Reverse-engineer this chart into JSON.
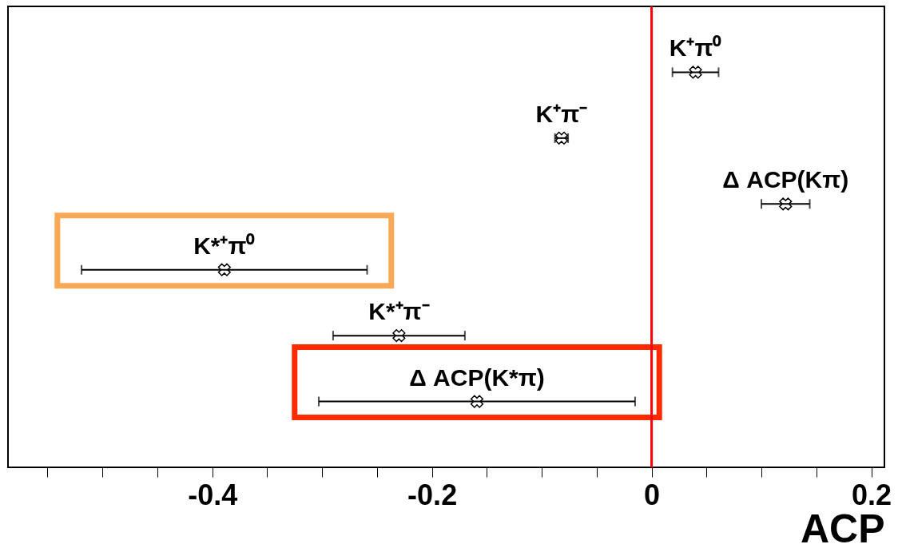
{
  "chart_data": {
    "type": "scatter",
    "orientation": "horizontal",
    "xlabel": "ACP",
    "categories": [
      null,
      null,
      null,
      null,
      null,
      null
    ],
    "annotations": [
      "K⁺π⁰",
      "K⁺π⁻",
      "Δ ACP(Kπ)",
      "K*⁺π⁰",
      "K*⁺π⁻",
      "Δ ACP(K*π)"
    ],
    "series": [
      {
        "color": "#000000",
        "values": [
          0.04,
          -0.082,
          0.122,
          -0.389,
          -0.23,
          -0.159
        ],
        "errors": [
          0.021,
          0.006,
          0.022,
          0.13,
          0.06,
          0.144
        ]
      }
    ],
    "xlim": [
      -0.586,
      0.212
    ],
    "xticks": [
      {
        "value": -0.55,
        "label": null
      },
      {
        "value": -0.5,
        "label": null
      },
      {
        "value": -0.45,
        "label": null
      },
      -0.4,
      {
        "value": -0.35,
        "label": null
      },
      {
        "value": -0.3,
        "label": null
      },
      {
        "value": -0.25,
        "label": null
      },
      -0.2,
      {
        "value": -0.15,
        "label": null
      },
      {
        "value": -0.1,
        "label": null
      },
      {
        "value": -0.05,
        "label": null
      },
      0,
      {
        "value": 0.05,
        "label": null
      },
      {
        "value": 0.1,
        "label": null
      },
      {
        "value": 0.15,
        "label": null
      },
      0.2
    ],
    "ref_lines": [
      {
        "axis": "x",
        "value": 0,
        "color": "#ff0000"
      }
    ],
    "tick_labels": "x",
    "grid": false,
    "marker": "cross"
  }
}
